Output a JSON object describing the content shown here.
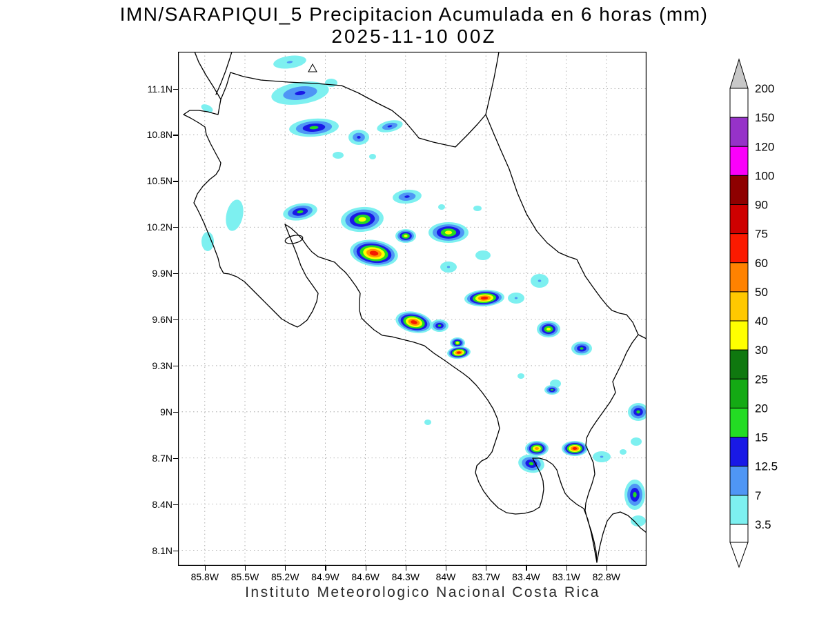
{
  "title": {
    "line1": "IMN/SARAPIQUI_5 Precipitacion Acumulada en 6 horas (mm)",
    "line2": "2025-11-10 00Z"
  },
  "footer": "Instituto Meteorologico Nacional Costa Rica",
  "axes": {
    "lat_ticks": [
      "11.1N",
      "10.8N",
      "10.5N",
      "10.2N",
      "9.9N",
      "9.6N",
      "9.3N",
      "9N",
      "8.7N",
      "8.4N",
      "8.1N"
    ],
    "lon_ticks": [
      "85.8W",
      "85.5W",
      "85.2W",
      "84.9W",
      "84.6W",
      "84.3W",
      "84W",
      "83.7W",
      "83.4W",
      "83.1W",
      "82.8W"
    ]
  },
  "colorbar": {
    "labels": [
      "200",
      "150",
      "120",
      "100",
      "90",
      "75",
      "60",
      "50",
      "40",
      "30",
      "25",
      "20",
      "15",
      "12.5",
      "7",
      "3.5"
    ],
    "band_colors_top_to_bottom": [
      "#FFFFFF",
      "#9632C8",
      "#FA00FA",
      "#8E0000",
      "#CE0000",
      "#FB1A00",
      "#FF8200",
      "#FFC800",
      "#FFFF00",
      "#0F780F",
      "#14AA14",
      "#23DC23",
      "#1919E6",
      "#4F96F5",
      "#7DF0F0"
    ],
    "arrow_top_color": "#C8C8C8",
    "arrow_bottom_color": "#FFFFFF"
  },
  "chart_data": {
    "type": "filled-contour-map",
    "title": "IMN/SARAPIQUI_5 Precipitacion Acumulada en 6 horas (mm)",
    "valid_time": "2025-11-10 00Z",
    "units": "mm",
    "region": "Costa Rica",
    "lat_range": [
      "8.1N",
      "11.1N"
    ],
    "lon_range": [
      "85.8W",
      "82.8W"
    ],
    "levels_mm": [
      3.5,
      7,
      12.5,
      15,
      20,
      25,
      30,
      40,
      50,
      60,
      75,
      90,
      100,
      120,
      150,
      200
    ],
    "legend_position": "right",
    "grid": "dashed",
    "render_ramp": [
      "#7DF0F0",
      "#4F96F5",
      "#1919E6",
      "#23DC23",
      "#FFFF00",
      "#FF9600",
      "#F51900"
    ],
    "cell_format": "[x_px,y_px,rx_px,ry_px,rotation_deg,max_level_index] in plot pixel coords; level index into render_ramp (0=3.5-7mm ... 6=60-75mm)",
    "cells": [
      [
        162,
        15,
        24,
        9,
        -8,
        1
      ],
      [
        177,
        60,
        42,
        16,
        -8,
        2
      ],
      [
        222,
        45,
        9,
        6,
        0,
        0
      ],
      [
        42,
        82,
        9,
        5,
        25,
        0
      ],
      [
        197,
        110,
        36,
        13,
        -4,
        3
      ],
      [
        262,
        124,
        15,
        11,
        0,
        2
      ],
      [
        307,
        108,
        19,
        8,
        -12,
        2
      ],
      [
        232,
        150,
        8,
        5,
        0,
        0
      ],
      [
        282,
        152,
        5,
        4,
        0,
        0
      ],
      [
        332,
        210,
        21,
        10,
        -5,
        2
      ],
      [
        82,
        237,
        12,
        23,
        12,
        0
      ],
      [
        43,
        275,
        9,
        14,
        0,
        0
      ],
      [
        177,
        232,
        25,
        12,
        -10,
        3
      ],
      [
        267,
        243,
        31,
        18,
        -5,
        4
      ],
      [
        330,
        267,
        15,
        10,
        0,
        4
      ],
      [
        392,
        262,
        29,
        15,
        0,
        4
      ],
      [
        284,
        292,
        35,
        19,
        8,
        6
      ],
      [
        392,
        312,
        12,
        8,
        0,
        1
      ],
      [
        442,
        295,
        11,
        7,
        0,
        0
      ],
      [
        382,
        225,
        5,
        4,
        0,
        0
      ],
      [
        434,
        227,
        6,
        4,
        0,
        0
      ],
      [
        524,
        332,
        13,
        10,
        0,
        1
      ],
      [
        444,
        357,
        29,
        12,
        -3,
        6
      ],
      [
        490,
        357,
        12,
        8,
        0,
        1
      ],
      [
        342,
        392,
        27,
        15,
        12,
        6
      ],
      [
        379,
        397,
        13,
        9,
        0,
        3
      ],
      [
        405,
        422,
        11,
        8,
        0,
        4
      ],
      [
        407,
        436,
        17,
        9,
        -5,
        6
      ],
      [
        537,
        402,
        17,
        12,
        0,
        4
      ],
      [
        585,
        430,
        15,
        10,
        0,
        3
      ],
      [
        547,
        481,
        8,
        6,
        0,
        0
      ],
      [
        542,
        490,
        11,
        7,
        0,
        3
      ],
      [
        667,
        522,
        15,
        13,
        0,
        3
      ],
      [
        664,
        565,
        8,
        6,
        0,
        0
      ],
      [
        520,
        575,
        17,
        11,
        0,
        5
      ],
      [
        575,
        575,
        19,
        11,
        0,
        6
      ],
      [
        512,
        597,
        19,
        13,
        10,
        3
      ],
      [
        614,
        587,
        13,
        8,
        0,
        1
      ],
      [
        645,
        580,
        5,
        4,
        0,
        0
      ],
      [
        662,
        642,
        15,
        22,
        0,
        3
      ],
      [
        667,
        680,
        11,
        8,
        0,
        0
      ],
      [
        497,
        470,
        5,
        4,
        0,
        0
      ],
      [
        362,
        537,
        5,
        4,
        0,
        0
      ]
    ]
  }
}
